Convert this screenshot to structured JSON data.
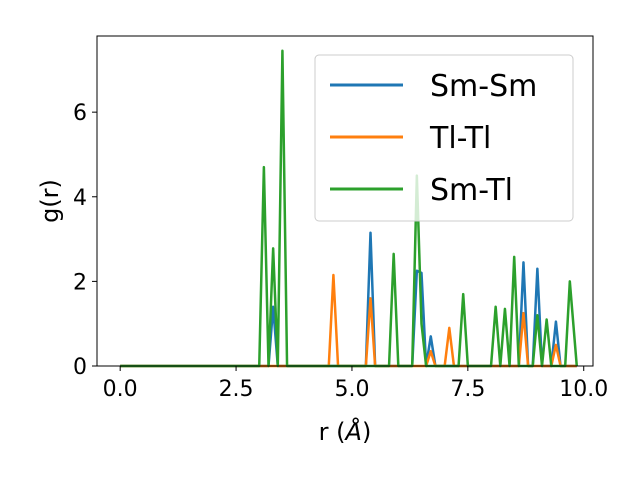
{
  "chart_data": {
    "type": "line",
    "xlabel": "r (",
    "xlabel_unit": "Å",
    "xlabel_close": ")",
    "ylabel": "g(r)",
    "xlim": [
      -0.5,
      10.2
    ],
    "ylim": [
      0,
      7.8
    ],
    "xticks": [
      0.0,
      2.5,
      5.0,
      7.5,
      10.0
    ],
    "xtick_labels": [
      "0.0",
      "2.5",
      "5.0",
      "7.5",
      "10.0"
    ],
    "yticks": [
      0,
      2,
      4,
      6
    ],
    "ytick_labels": [
      "0",
      "2",
      "4",
      "6"
    ],
    "grid": false,
    "legend_position": "top-right",
    "series": [
      {
        "name": "Sm-Sm",
        "color": "#1f77b4",
        "points": [
          [
            0.0,
            0
          ],
          [
            3.2,
            0
          ],
          [
            3.3,
            1.4
          ],
          [
            3.4,
            0
          ],
          [
            5.3,
            0
          ],
          [
            5.4,
            3.15
          ],
          [
            5.5,
            0
          ],
          [
            6.3,
            0
          ],
          [
            6.4,
            2.25
          ],
          [
            6.5,
            2.2
          ],
          [
            6.6,
            0
          ],
          [
            6.7,
            0.7
          ],
          [
            6.8,
            0
          ],
          [
            8.6,
            0
          ],
          [
            8.7,
            2.45
          ],
          [
            8.8,
            0
          ],
          [
            8.9,
            0
          ],
          [
            9.0,
            2.3
          ],
          [
            9.1,
            0
          ],
          [
            9.3,
            0
          ],
          [
            9.4,
            1.05
          ],
          [
            9.5,
            0
          ],
          [
            9.85,
            0
          ]
        ]
      },
      {
        "name": "Tl-Tl",
        "color": "#ff7f0e",
        "points": [
          [
            0.0,
            0
          ],
          [
            4.5,
            0
          ],
          [
            4.6,
            2.15
          ],
          [
            4.7,
            0
          ],
          [
            5.3,
            0
          ],
          [
            5.4,
            1.6
          ],
          [
            5.5,
            0
          ],
          [
            6.6,
            0
          ],
          [
            6.7,
            0.35
          ],
          [
            6.8,
            0
          ],
          [
            7.0,
            0
          ],
          [
            7.1,
            0.9
          ],
          [
            7.2,
            0
          ],
          [
            8.6,
            0
          ],
          [
            8.7,
            1.25
          ],
          [
            8.8,
            0
          ],
          [
            9.3,
            0
          ],
          [
            9.4,
            0.5
          ],
          [
            9.5,
            0
          ],
          [
            9.85,
            0
          ]
        ]
      },
      {
        "name": "Sm-Tl",
        "color": "#2ca02c",
        "points": [
          [
            0.0,
            0
          ],
          [
            3.0,
            0
          ],
          [
            3.1,
            4.7
          ],
          [
            3.2,
            0
          ],
          [
            3.3,
            2.78
          ],
          [
            3.4,
            0
          ],
          [
            3.5,
            7.45
          ],
          [
            3.6,
            0
          ],
          [
            5.8,
            0
          ],
          [
            5.9,
            2.65
          ],
          [
            6.0,
            0
          ],
          [
            6.3,
            0
          ],
          [
            6.4,
            4.5
          ],
          [
            6.5,
            1.0
          ],
          [
            6.6,
            0
          ],
          [
            7.3,
            0
          ],
          [
            7.4,
            1.7
          ],
          [
            7.5,
            0
          ],
          [
            8.0,
            0
          ],
          [
            8.1,
            1.4
          ],
          [
            8.2,
            0
          ],
          [
            8.3,
            1.35
          ],
          [
            8.4,
            0
          ],
          [
            8.5,
            2.58
          ],
          [
            8.6,
            0
          ],
          [
            8.9,
            0
          ],
          [
            9.0,
            1.2
          ],
          [
            9.1,
            0
          ],
          [
            9.2,
            1.1
          ],
          [
            9.3,
            0
          ],
          [
            9.6,
            0
          ],
          [
            9.7,
            2.0
          ],
          [
            9.85,
            0
          ]
        ]
      }
    ]
  }
}
